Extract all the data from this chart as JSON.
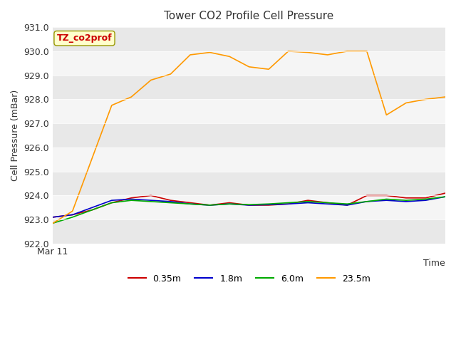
{
  "title": "Tower CO2 Profile Cell Pressure",
  "xlabel": "Time",
  "ylabel": "Cell Pressure (mBar)",
  "ylim": [
    922.0,
    931.0
  ],
  "yticks": [
    922.0,
    923.0,
    924.0,
    925.0,
    926.0,
    927.0,
    928.0,
    929.0,
    930.0,
    931.0
  ],
  "x_start_label": "Mar 11",
  "annotation_label": "TZ_co2prof",
  "annotation_color": "#cc0000",
  "annotation_bg": "#ffffcc",
  "annotation_edge": "#999900",
  "bg_color": "#ffffff",
  "band_color_dark": "#e8e8e8",
  "band_color_light": "#f5f5f5",
  "series": {
    "0.35m": {
      "color": "#cc0000",
      "x": [
        0,
        5,
        10,
        15,
        20,
        25,
        30,
        35,
        40,
        45,
        50,
        55,
        60,
        65,
        70,
        75,
        80,
        85,
        90,
        95,
        100
      ],
      "y": [
        923.1,
        923.2,
        923.4,
        923.7,
        923.9,
        924.0,
        923.8,
        923.7,
        923.6,
        923.7,
        923.6,
        923.6,
        923.65,
        923.8,
        923.7,
        923.6,
        924.0,
        924.0,
        923.9,
        923.9,
        924.1
      ]
    },
    "1.8m": {
      "color": "#0000cc",
      "x": [
        0,
        5,
        10,
        15,
        20,
        25,
        30,
        35,
        40,
        45,
        50,
        55,
        60,
        65,
        70,
        75,
        80,
        85,
        90,
        95,
        100
      ],
      "y": [
        923.1,
        923.2,
        923.5,
        923.8,
        923.85,
        923.8,
        923.75,
        923.65,
        923.6,
        923.65,
        923.6,
        923.62,
        923.65,
        923.7,
        923.65,
        923.6,
        923.75,
        923.8,
        923.75,
        923.8,
        923.95
      ]
    },
    "6.0m": {
      "color": "#00aa00",
      "x": [
        0,
        5,
        10,
        15,
        20,
        25,
        30,
        35,
        40,
        45,
        50,
        55,
        60,
        65,
        70,
        75,
        80,
        85,
        90,
        95,
        100
      ],
      "y": [
        922.85,
        923.1,
        923.4,
        923.7,
        923.8,
        923.75,
        923.7,
        923.65,
        923.6,
        923.65,
        923.62,
        923.65,
        923.7,
        923.75,
        923.7,
        923.65,
        923.75,
        923.85,
        923.8,
        923.85,
        923.95
      ]
    },
    "23.5m": {
      "color": "#ff9900",
      "x": [
        0,
        5,
        10,
        15,
        20,
        25,
        30,
        35,
        40,
        45,
        50,
        55,
        60,
        65,
        70,
        75,
        80,
        85,
        90,
        95,
        100
      ],
      "y": [
        922.85,
        923.35,
        925.55,
        927.75,
        928.1,
        928.8,
        929.05,
        929.85,
        929.95,
        929.78,
        929.35,
        929.25,
        930.0,
        929.95,
        929.85,
        930.0,
        930.0,
        927.35,
        927.85,
        928.0,
        928.1
      ]
    }
  }
}
